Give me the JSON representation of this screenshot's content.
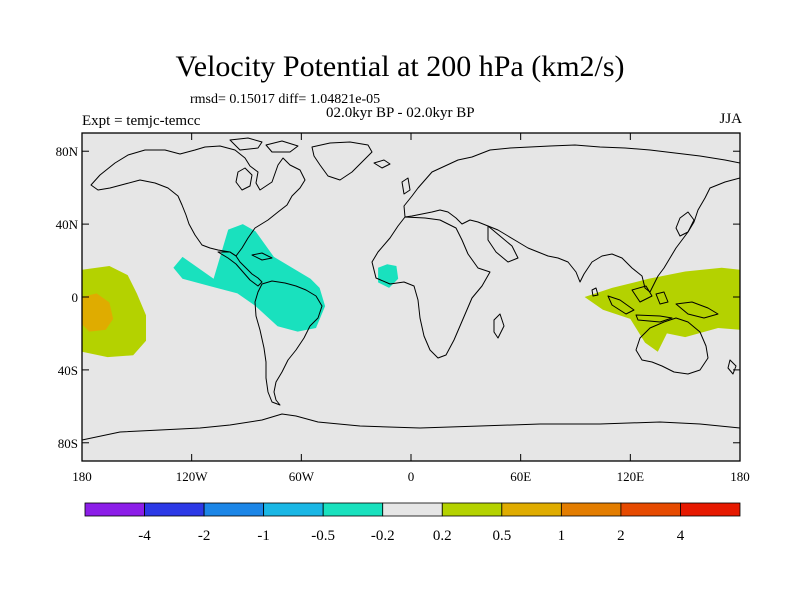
{
  "title": "Velocity Potential at 200 hPa (km2/s)",
  "stats": "rmsd= 0.15017 diff= 1.04821e-05",
  "subtitle": "02.0kyr BP - 02.0kyr BP",
  "expt": "Expt = temjc-temcc",
  "season": "JJA",
  "map": {
    "projection": "cylindrical-equidistant",
    "lon_range": [
      -180,
      180
    ],
    "lat_range": [
      -90,
      90
    ],
    "ocean_color": "#e6e6e6",
    "coast_color": "#000000",
    "y_ticks": [
      {
        "lat": 80,
        "label": "80N"
      },
      {
        "lat": 40,
        "label": "40N"
      },
      {
        "lat": 0,
        "label": "0"
      },
      {
        "lat": -40,
        "label": "40S"
      },
      {
        "lat": -80,
        "label": "80S"
      }
    ],
    "x_ticks": [
      {
        "lon": -180,
        "label": "180"
      },
      {
        "lon": -120,
        "label": "120W"
      },
      {
        "lon": -60,
        "label": "60W"
      },
      {
        "lon": 0,
        "label": "0"
      },
      {
        "lon": 60,
        "label": "60E"
      },
      {
        "lon": 120,
        "label": "120E"
      },
      {
        "lon": 180,
        "label": "180"
      }
    ],
    "anomalies": [
      {
        "name": "central-pacific-positive",
        "color": "#b4d200",
        "lonlat": [
          [
            -180,
            15
          ],
          [
            -165,
            17
          ],
          [
            -155,
            12
          ],
          [
            -150,
            2
          ],
          [
            -145,
            -10
          ],
          [
            -145,
            -24
          ],
          [
            -152,
            -32
          ],
          [
            -166,
            -33
          ],
          [
            -180,
            -30
          ]
        ]
      },
      {
        "name": "central-pacific-core",
        "color": "#dfac00",
        "lonlat": [
          [
            -180,
            0
          ],
          [
            -172,
            2
          ],
          [
            -165,
            -3
          ],
          [
            -163,
            -12
          ],
          [
            -167,
            -18
          ],
          [
            -176,
            -19
          ],
          [
            -180,
            -15
          ]
        ]
      },
      {
        "name": "tropical-atlantic-negative",
        "color": "#19e1be",
        "lonlat": [
          [
            -108,
            10
          ],
          [
            -100,
            37
          ],
          [
            -92,
            40
          ],
          [
            -85,
            36
          ],
          [
            -75,
            22
          ],
          [
            -55,
            10
          ],
          [
            -50,
            5
          ],
          [
            -47,
            -5
          ],
          [
            -52,
            -17
          ],
          [
            -62,
            -19
          ],
          [
            -73,
            -16
          ],
          [
            -85,
            -5
          ],
          [
            -95,
            2
          ],
          [
            -110,
            6
          ],
          [
            -125,
            10
          ],
          [
            -130,
            16
          ],
          [
            -125,
            22
          ]
        ]
      },
      {
        "name": "west-africa-negative",
        "color": "#19e1be",
        "lonlat": [
          [
            -18,
            16
          ],
          [
            -13,
            18
          ],
          [
            -8,
            17
          ],
          [
            -7,
            10
          ],
          [
            -12,
            5
          ],
          [
            -18,
            8
          ]
        ]
      },
      {
        "name": "maritime-continent-positive",
        "color": "#b4d200",
        "lonlat": [
          [
            95,
            0
          ],
          [
            110,
            5
          ],
          [
            130,
            10
          ],
          [
            150,
            14
          ],
          [
            170,
            16
          ],
          [
            180,
            15
          ],
          [
            180,
            -18
          ],
          [
            168,
            -17
          ],
          [
            150,
            -22
          ],
          [
            140,
            -20
          ],
          [
            135,
            -30
          ],
          [
            128,
            -25
          ],
          [
            120,
            -12
          ],
          [
            105,
            -7
          ]
        ]
      }
    ]
  },
  "colorbar": {
    "colors": [
      "#8c1ee8",
      "#2c39e6",
      "#1c86e7",
      "#1ab7e5",
      "#19e1be",
      "#e6e6e6",
      "#b4d200",
      "#dfac00",
      "#e37d00",
      "#e64a00",
      "#e61900"
    ],
    "labels": [
      "-4",
      "-2",
      "-1",
      "-0.5",
      "-0.2",
      "0.2",
      "0.5",
      "1",
      "2",
      "4"
    ]
  }
}
